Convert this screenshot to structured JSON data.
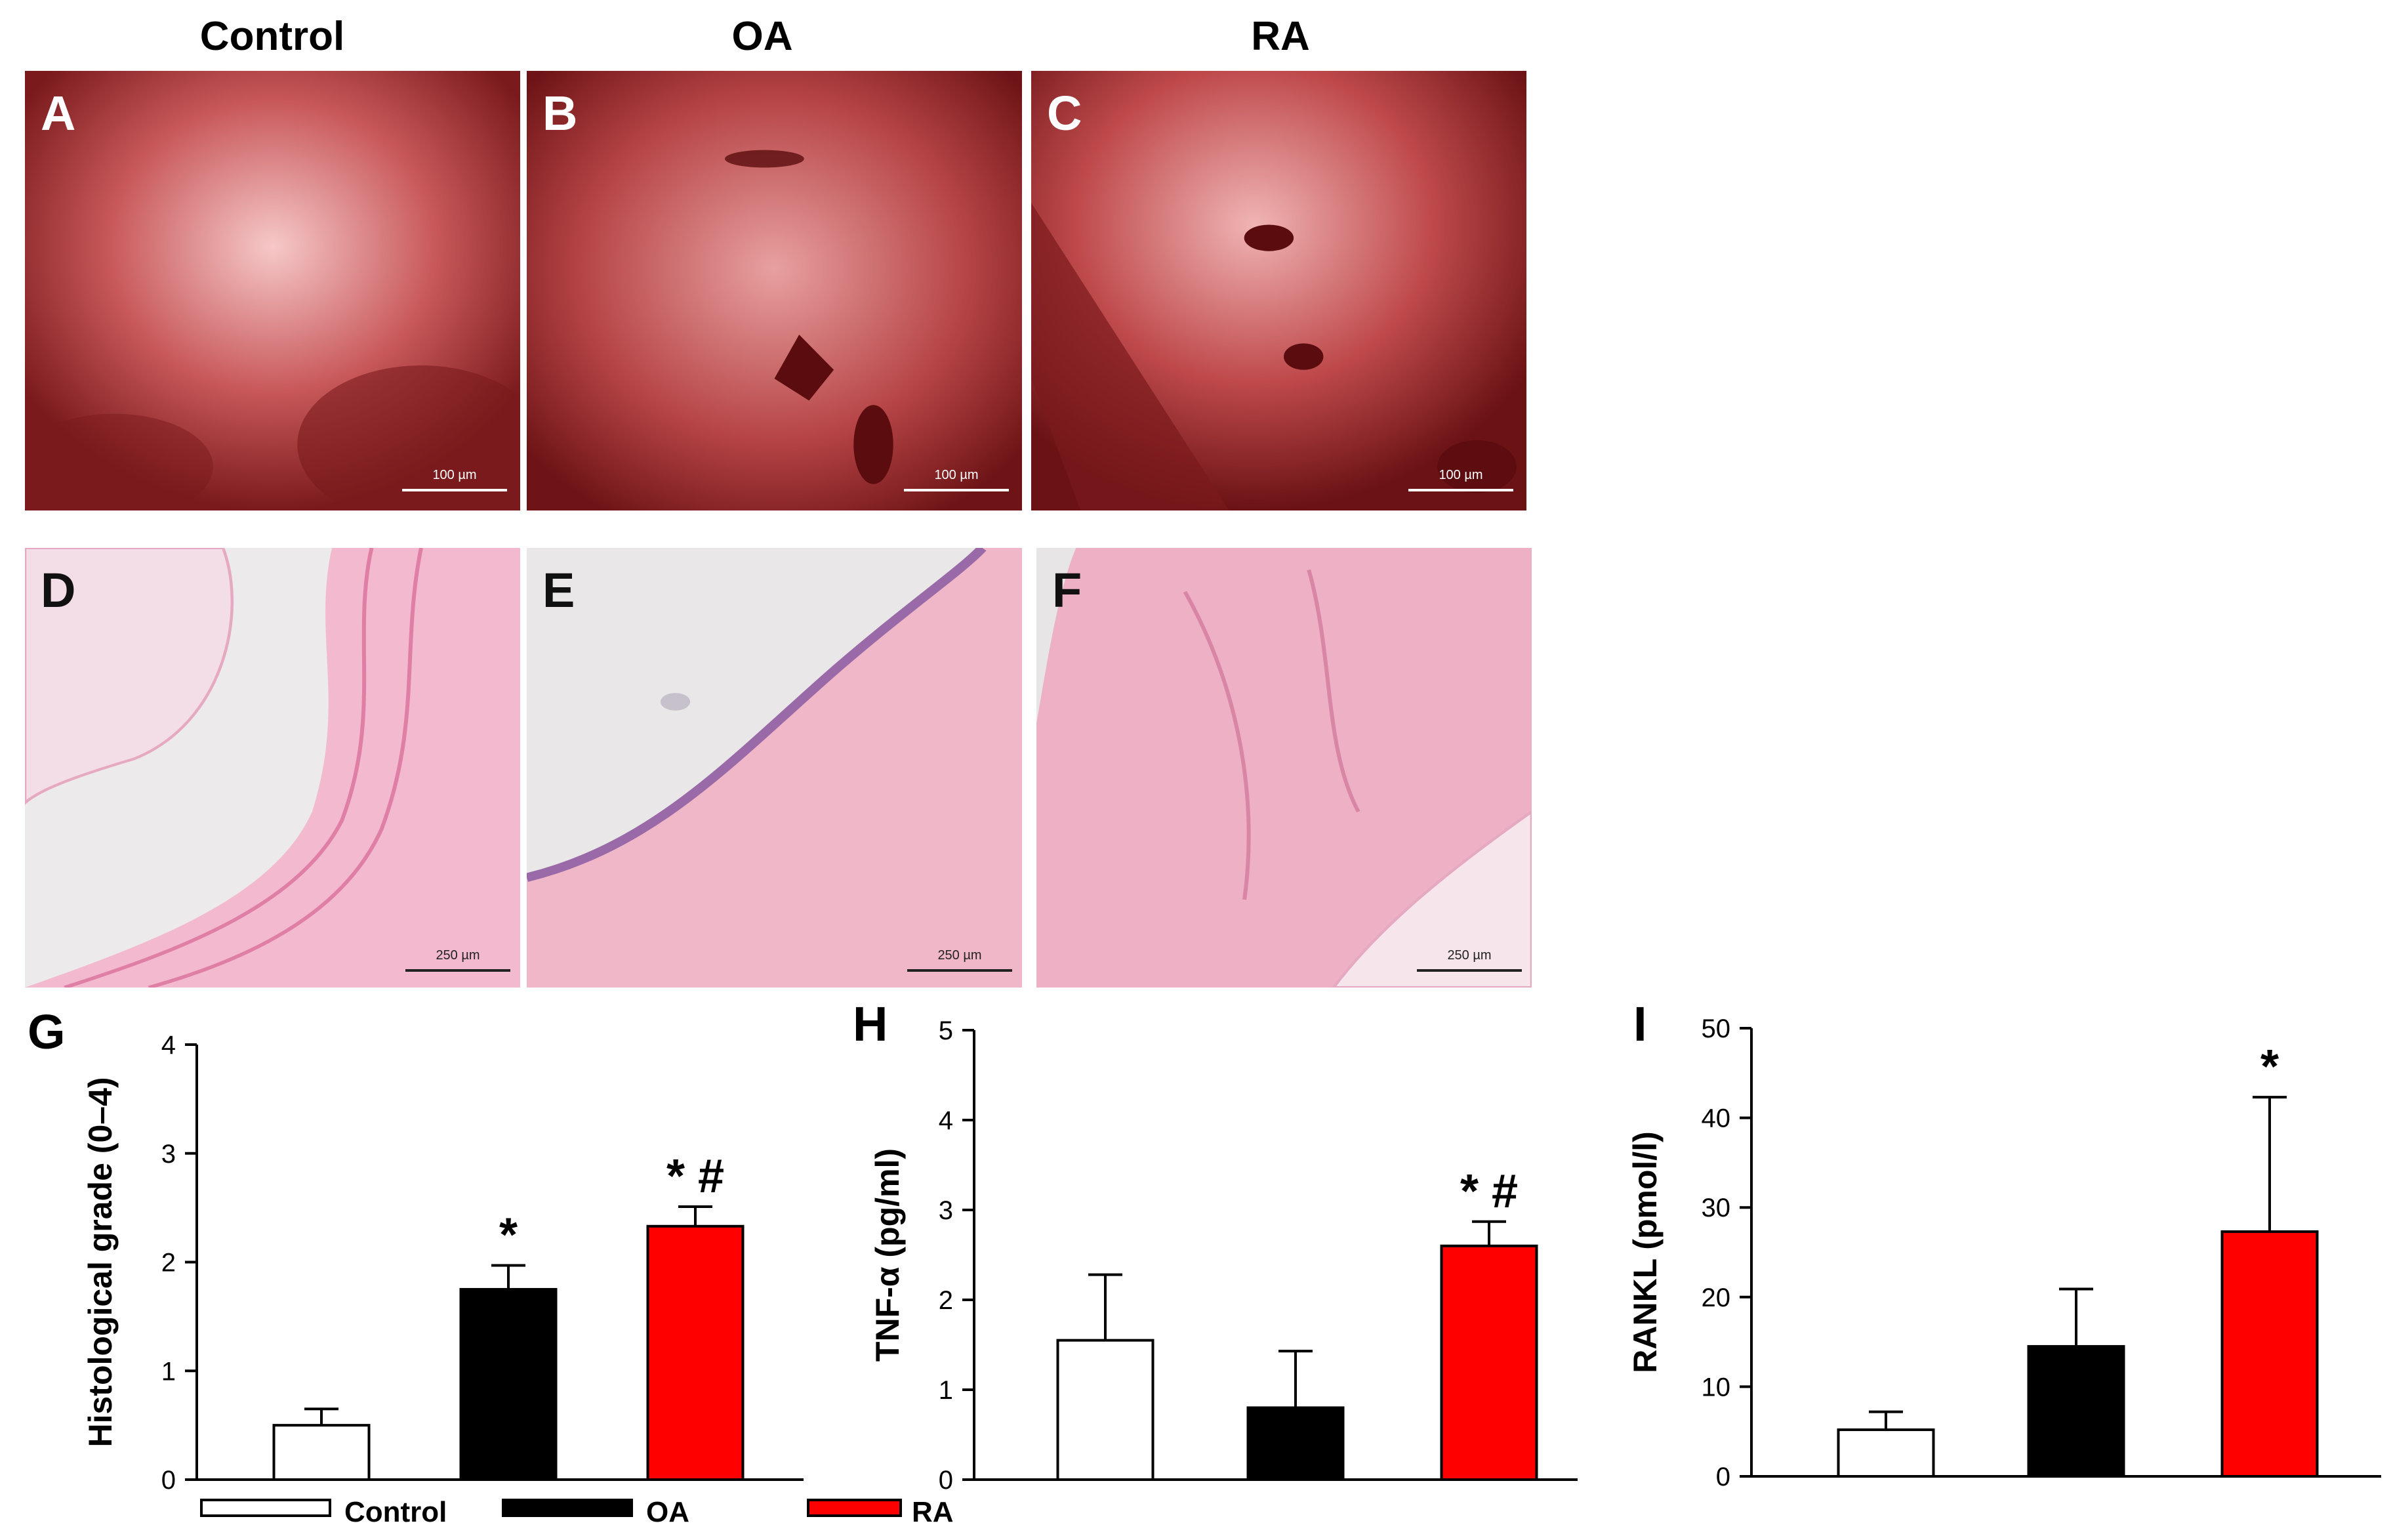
{
  "column_titles": [
    "Control",
    "OA",
    "RA"
  ],
  "micrograph_rows": [
    {
      "stain": "fluorescence",
      "panels": [
        {
          "letter": "A",
          "scale": "100 µm"
        },
        {
          "letter": "B",
          "scale": "100 µm"
        },
        {
          "letter": "C",
          "scale": "100 µm"
        }
      ]
    },
    {
      "stain": "H&E",
      "panels": [
        {
          "letter": "D",
          "scale": "250 µm"
        },
        {
          "letter": "E",
          "scale": "250 µm"
        },
        {
          "letter": "F",
          "scale": "250 µm"
        }
      ]
    }
  ],
  "legend": [
    {
      "label": "Control",
      "color": "#ffffff"
    },
    {
      "label": "OA",
      "color": "#000000"
    },
    {
      "label": "RA",
      "color": "#ff0000"
    }
  ],
  "chart_data": [
    {
      "panel": "G",
      "type": "bar",
      "ylabel": "Histological grade (0–4)",
      "ylim": [
        0,
        4
      ],
      "yticks": [
        0,
        1,
        2,
        3,
        4
      ],
      "categories": [
        "Control",
        "OA",
        "RA"
      ],
      "values": [
        0.5,
        1.75,
        2.33
      ],
      "errors": [
        0.15,
        0.22,
        0.18
      ],
      "colors": [
        "#ffffff",
        "#000000",
        "#ff0000"
      ],
      "annotations": [
        "",
        "*",
        "* #"
      ]
    },
    {
      "panel": "H",
      "type": "bar",
      "ylabel": "TNF-α (pg/ml)",
      "ylim": [
        0,
        5
      ],
      "yticks": [
        0,
        1,
        2,
        3,
        4,
        5
      ],
      "categories": [
        "Control",
        "OA",
        "RA"
      ],
      "values": [
        1.55,
        0.8,
        2.6
      ],
      "errors": [
        0.73,
        0.63,
        0.27
      ],
      "colors": [
        "#ffffff",
        "#000000",
        "#ff0000"
      ],
      "annotations": [
        "",
        "",
        "* #"
      ]
    },
    {
      "panel": "I",
      "type": "bar",
      "ylabel": "RANKL (pmol/l)",
      "ylim": [
        0,
        50
      ],
      "yticks": [
        0,
        10,
        20,
        30,
        40,
        50
      ],
      "categories": [
        "Control",
        "OA",
        "RA"
      ],
      "values": [
        5.2,
        14.5,
        27.3
      ],
      "errors": [
        2.0,
        6.4,
        15.0
      ],
      "colors": [
        "#ffffff",
        "#000000",
        "#ff0000"
      ],
      "annotations": [
        "",
        "",
        "*"
      ]
    }
  ]
}
